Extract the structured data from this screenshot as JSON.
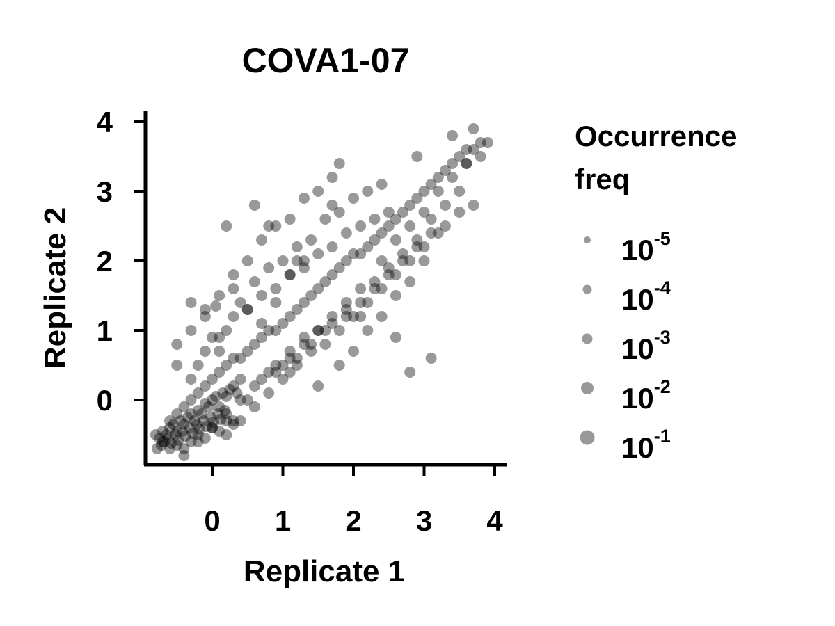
{
  "chart_data": {
    "type": "scatter",
    "title": "COVA1-07",
    "xlabel": "Replicate 1",
    "ylabel": "Replicate 2",
    "xlim": [
      -0.95,
      4.15
    ],
    "ylim": [
      -0.95,
      4.15
    ],
    "xticks": [
      0,
      1,
      2,
      3,
      4
    ],
    "yticks": [
      0,
      1,
      2,
      3,
      4
    ],
    "grid": false,
    "legend": {
      "title": "Occurrence freq",
      "title_lines": [
        "Occurrence",
        "freq"
      ],
      "placement": "right",
      "entries": [
        {
          "base": "10",
          "exp": "-5",
          "size_value": 1e-05
        },
        {
          "base": "10",
          "exp": "-4",
          "size_value": 0.0001
        },
        {
          "base": "10",
          "exp": "-3",
          "size_value": 0.001
        },
        {
          "base": "10",
          "exp": "-2",
          "size_value": 0.01
        },
        {
          "base": "10",
          "exp": "-1",
          "size_value": 0.1
        }
      ]
    },
    "point_color": "#000000",
    "point_alpha": 0.4,
    "legend_marker_color": "#999999",
    "series": [
      {
        "x": [
          -0.8,
          -0.75,
          -0.7,
          -0.65,
          -0.6,
          -0.55,
          -0.5,
          -0.45,
          -0.4,
          -0.35,
          -0.3,
          -0.25,
          -0.2,
          -0.15,
          -0.1,
          -0.05,
          0.0,
          0.05,
          0.1,
          0.15,
          0.2,
          0.25,
          0.3,
          0.35,
          0.4,
          -0.78,
          -0.72,
          -0.68,
          -0.62,
          -0.58,
          -0.52,
          -0.48,
          -0.42,
          -0.38,
          -0.32,
          -0.28,
          -0.22,
          -0.18,
          -0.12,
          -0.08,
          -0.02,
          0.02,
          0.08,
          0.12,
          0.18,
          -0.6,
          -0.5,
          -0.4,
          -0.3,
          -0.2,
          -0.1,
          0.0,
          0.1,
          0.2,
          0.3,
          0.4,
          0.5,
          0.6,
          0.7,
          0.8,
          0.9,
          1.0,
          1.1,
          1.2,
          1.3,
          1.4,
          1.5,
          1.6,
          1.7,
          1.8,
          1.9,
          2.0,
          2.1,
          2.2,
          2.3,
          2.4,
          2.5,
          2.6,
          2.7,
          2.8,
          2.9,
          3.0,
          3.1,
          3.2,
          3.3,
          3.4,
          3.5,
          3.6,
          3.7,
          3.8,
          -0.3,
          -0.2,
          -0.1,
          0.0,
          0.1,
          0.2,
          0.3,
          0.5,
          0.7,
          0.9,
          1.1,
          1.3,
          1.5,
          1.7,
          1.9,
          2.1,
          2.3,
          2.5,
          0.4,
          0.6,
          0.8,
          1.0,
          1.2,
          1.4,
          1.6,
          1.8,
          2.0,
          2.2,
          2.4,
          0.2,
          0.4,
          0.6,
          0.8,
          1.0,
          1.2,
          1.4,
          1.6,
          1.8,
          2.0,
          2.2,
          2.4,
          2.6,
          2.8,
          3.0,
          3.2,
          -0.5,
          -0.3,
          -0.1,
          0.1,
          0.3,
          0.5,
          0.7,
          0.9,
          1.1,
          1.3,
          1.5,
          1.7,
          0.9,
          1.1,
          1.3,
          1.5,
          1.7,
          1.9,
          2.1,
          2.3,
          2.5,
          2.7,
          2.9,
          3.1,
          3.3,
          3.5,
          3.7,
          2.4,
          2.6,
          2.8,
          3.0,
          3.2,
          3.4,
          3.6,
          3.8,
          3.9,
          1.8,
          2.0,
          2.2,
          2.4,
          2.6,
          2.8,
          3.0,
          -0.4,
          -0.2,
          0.0,
          0.2,
          0.4,
          0.6,
          0.8,
          1.0,
          1.2,
          1.4,
          1.6,
          -0.5,
          -0.3,
          -0.1,
          0.1,
          0.3,
          0.5,
          0.7,
          0.9,
          1.1,
          1.3,
          0.3,
          0.5,
          0.7,
          0.9,
          1.1,
          1.3,
          1.5,
          1.7,
          1.9,
          2.1,
          2.3,
          2.5,
          2.7,
          2.9,
          3.1,
          3.3,
          3.5,
          -0.7,
          -0.6,
          -0.5,
          -0.4,
          -0.3,
          -0.2,
          -0.1,
          0.0,
          0.1,
          0.2,
          0.3,
          1.8,
          2.8,
          3.1,
          2.6,
          2.1,
          1.5,
          0.6,
          0.8,
          0.2,
          1.2,
          1.7,
          2.9,
          3.6,
          3.4,
          3.7,
          1.9,
          1.1,
          0.05
        ],
        "y": [
          -0.5,
          -0.55,
          -0.45,
          -0.5,
          -0.4,
          -0.35,
          -0.45,
          -0.3,
          -0.35,
          -0.25,
          -0.2,
          -0.3,
          -0.15,
          -0.2,
          -0.05,
          -0.1,
          0.0,
          0.05,
          -0.1,
          0.1,
          0.05,
          0.15,
          0.2,
          0.1,
          0.3,
          -0.7,
          -0.65,
          -0.6,
          -0.55,
          -0.62,
          -0.5,
          -0.58,
          -0.45,
          -0.52,
          -0.4,
          -0.48,
          -0.35,
          -0.42,
          -0.3,
          -0.38,
          -0.25,
          -0.32,
          -0.2,
          -0.28,
          -0.15,
          -0.3,
          -0.2,
          -0.1,
          0.0,
          0.1,
          0.2,
          0.3,
          0.4,
          0.5,
          0.6,
          0.6,
          0.7,
          0.8,
          0.9,
          1.0,
          1.0,
          1.1,
          1.2,
          1.3,
          1.4,
          1.5,
          1.6,
          1.7,
          1.8,
          1.9,
          2.0,
          2.1,
          2.1,
          2.2,
          2.3,
          2.4,
          2.5,
          2.6,
          2.7,
          2.8,
          2.9,
          3.0,
          3.1,
          3.2,
          3.3,
          3.4,
          3.5,
          3.6,
          3.6,
          3.7,
          0.3,
          0.5,
          0.7,
          0.9,
          0.7,
          1.0,
          1.2,
          1.3,
          1.5,
          1.6,
          1.8,
          1.9,
          2.1,
          2.2,
          2.4,
          2.5,
          2.6,
          2.7,
          1.4,
          1.7,
          1.9,
          2.0,
          2.2,
          2.3,
          2.6,
          2.7,
          2.9,
          3.0,
          3.1,
          -0.5,
          -0.3,
          -0.1,
          0.1,
          0.3,
          0.5,
          0.7,
          0.8,
          1.0,
          1.2,
          1.4,
          1.6,
          1.8,
          2.0,
          2.2,
          2.4,
          0.8,
          1.0,
          1.3,
          1.5,
          1.8,
          2.0,
          2.3,
          2.5,
          2.6,
          2.9,
          3.0,
          3.2,
          0.5,
          0.7,
          0.9,
          1.0,
          1.1,
          1.3,
          1.4,
          1.6,
          1.8,
          2.0,
          2.2,
          2.4,
          2.5,
          2.7,
          2.8,
          2.0,
          2.3,
          2.5,
          2.7,
          3.0,
          3.2,
          3.4,
          3.5,
          3.7,
          0.5,
          0.7,
          1.0,
          1.2,
          1.5,
          1.7,
          2.0,
          -0.8,
          -0.6,
          -0.4,
          -0.2,
          0.0,
          0.2,
          0.4,
          0.5,
          0.6,
          0.8,
          1.0,
          0.5,
          1.4,
          1.2,
          0.9,
          1.6,
          1.3,
          1.1,
          1.4,
          1.8,
          2.0,
          -0.3,
          0.0,
          0.3,
          0.4,
          0.6,
          0.8,
          1.0,
          1.2,
          1.4,
          1.6,
          1.7,
          1.9,
          2.1,
          2.3,
          2.6,
          2.8,
          3.0,
          -0.6,
          -0.7,
          -0.65,
          -0.7,
          -0.6,
          -0.5,
          -0.55,
          -0.4,
          -0.45,
          -0.3,
          -0.35,
          3.4,
          0.4,
          0.6,
          0.9,
          1.2,
          0.2,
          2.8,
          2.5,
          2.5,
          2.0,
          2.8,
          3.5,
          3.4,
          3.8,
          3.9,
          1.2,
          0.4,
          1.35
        ]
      }
    ]
  }
}
